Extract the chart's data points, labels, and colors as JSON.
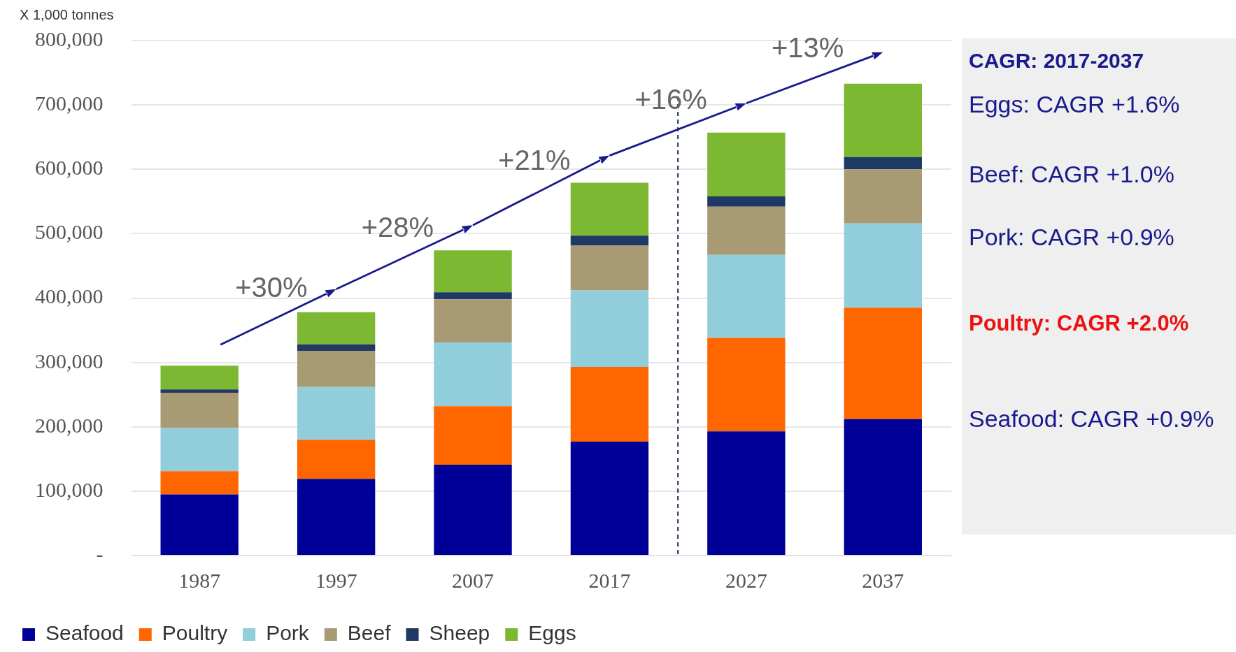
{
  "chart_data": {
    "type": "bar",
    "stacked": true,
    "x": [
      1987,
      1997,
      2007,
      2017,
      2027,
      2037
    ],
    "xlim": [
      1982,
      2042
    ],
    "xticks": [
      1987,
      1997,
      2007,
      2017,
      2027,
      2037
    ],
    "ylabel": "X 1,000 tonnes",
    "ylim": [
      0,
      800000
    ],
    "yticks": [
      {
        "value": 0,
        "label": "-"
      },
      {
        "value": 100000,
        "label": "100,000"
      },
      {
        "value": 200000,
        "label": "200,000"
      },
      {
        "value": 300000,
        "label": "300,000"
      },
      {
        "value": 400000,
        "label": "400,000"
      },
      {
        "value": 500000,
        "label": "500,000"
      },
      {
        "value": 600000,
        "label": "600,000"
      },
      {
        "value": 700000,
        "label": "700,000"
      },
      {
        "value": 800000,
        "label": "800,000"
      }
    ],
    "series": [
      {
        "name": "Seafood",
        "color": "#000099",
        "values": [
          95000,
          119000,
          141000,
          177000,
          193000,
          212000
        ]
      },
      {
        "name": "Poultry",
        "color": "#ff6600",
        "values": [
          36000,
          61000,
          91000,
          116000,
          145000,
          173000
        ]
      },
      {
        "name": "Pork",
        "color": "#92cddc",
        "values": [
          67000,
          82000,
          99000,
          119000,
          129000,
          131000
        ]
      },
      {
        "name": "Beef",
        "color": "#a89a73",
        "values": [
          55000,
          56000,
          67000,
          70000,
          75000,
          84000
        ]
      },
      {
        "name": "Sheep",
        "color": "#1f3864",
        "values": [
          5000,
          10000,
          11000,
          15000,
          16000,
          19000
        ]
      },
      {
        "name": "Eggs",
        "color": "#7cb832",
        "values": [
          37000,
          50000,
          65000,
          82000,
          99000,
          114000
        ]
      }
    ],
    "ref_lines": [
      {
        "axis": "x",
        "value": 2022,
        "line_style": "dashed",
        "color": "#1f2a5a"
      }
    ],
    "annotations": [
      "+30%",
      "+28%",
      "+21%",
      "+16%",
      "+13%",
      "CAGR: 2017-2037",
      "Eggs: CAGR  +1.6%",
      "Beef: CAGR  +1.0%",
      "Pork: CAGR  +0.9%",
      "Poultry: CAGR  +2.0%",
      "Seafood: CAGR  +0.9%"
    ],
    "grid": "y",
    "legend": "bottom"
  }
}
